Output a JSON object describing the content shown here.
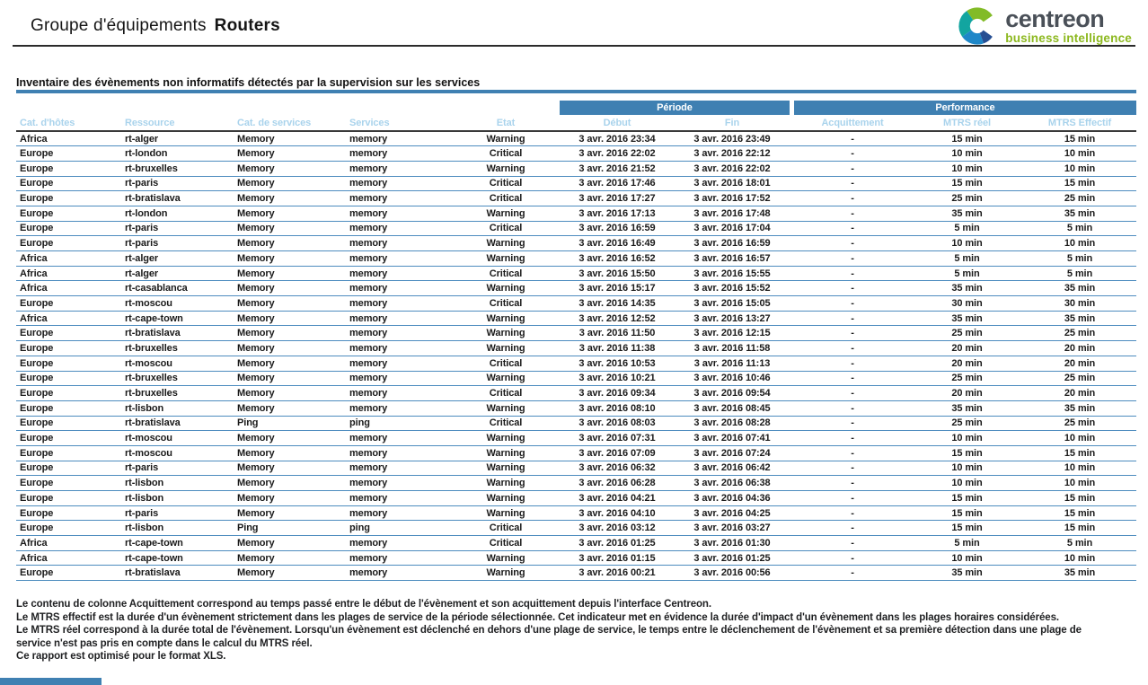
{
  "header": {
    "title_prefix": "Groupe d'équipements",
    "title_emphasis": "Routers"
  },
  "logo": {
    "brand": "centreon",
    "tagline": "business intelligence"
  },
  "section": {
    "title": "Inventaire des évènements non informatifs détectés par la supervision sur les services"
  },
  "table": {
    "group_headers": {
      "periode": "Période",
      "performance": "Performance"
    },
    "columns": [
      "Cat. d'hôtes",
      "Ressource",
      "Cat. de services",
      "Services",
      "Etat",
      "Début",
      "Fin",
      "Acquittement",
      "MTRS réel",
      "MTRS Effectif"
    ],
    "rows": [
      {
        "cat": "Africa",
        "ressource": "rt-alger",
        "cat_service": "Memory",
        "service": "memory",
        "etat": "Warning",
        "debut": "3 avr. 2016 23:34",
        "fin": "3 avr. 2016 23:49",
        "acquittement": "-",
        "mtrs_reel": "15 min",
        "mtrs_effectif": "15 min"
      },
      {
        "cat": "Europe",
        "ressource": "rt-london",
        "cat_service": "Memory",
        "service": "memory",
        "etat": "Critical",
        "debut": "3 avr. 2016 22:02",
        "fin": "3 avr. 2016 22:12",
        "acquittement": "-",
        "mtrs_reel": "10 min",
        "mtrs_effectif": "10 min"
      },
      {
        "cat": "Europe",
        "ressource": "rt-bruxelles",
        "cat_service": "Memory",
        "service": "memory",
        "etat": "Warning",
        "debut": "3 avr. 2016 21:52",
        "fin": "3 avr. 2016 22:02",
        "acquittement": "-",
        "mtrs_reel": "10 min",
        "mtrs_effectif": "10 min"
      },
      {
        "cat": "Europe",
        "ressource": "rt-paris",
        "cat_service": "Memory",
        "service": "memory",
        "etat": "Critical",
        "debut": "3 avr. 2016 17:46",
        "fin": "3 avr. 2016 18:01",
        "acquittement": "-",
        "mtrs_reel": "15 min",
        "mtrs_effectif": "15 min"
      },
      {
        "cat": "Europe",
        "ressource": "rt-bratislava",
        "cat_service": "Memory",
        "service": "memory",
        "etat": "Critical",
        "debut": "3 avr. 2016 17:27",
        "fin": "3 avr. 2016 17:52",
        "acquittement": "-",
        "mtrs_reel": "25 min",
        "mtrs_effectif": "25 min"
      },
      {
        "cat": "Europe",
        "ressource": "rt-london",
        "cat_service": "Memory",
        "service": "memory",
        "etat": "Warning",
        "debut": "3 avr. 2016 17:13",
        "fin": "3 avr. 2016 17:48",
        "acquittement": "-",
        "mtrs_reel": "35 min",
        "mtrs_effectif": "35 min"
      },
      {
        "cat": "Europe",
        "ressource": "rt-paris",
        "cat_service": "Memory",
        "service": "memory",
        "etat": "Critical",
        "debut": "3 avr. 2016 16:59",
        "fin": "3 avr. 2016 17:04",
        "acquittement": "-",
        "mtrs_reel": "5 min",
        "mtrs_effectif": "5 min"
      },
      {
        "cat": "Europe",
        "ressource": "rt-paris",
        "cat_service": "Memory",
        "service": "memory",
        "etat": "Warning",
        "debut": "3 avr. 2016 16:49",
        "fin": "3 avr. 2016 16:59",
        "acquittement": "-",
        "mtrs_reel": "10 min",
        "mtrs_effectif": "10 min"
      },
      {
        "cat": "Africa",
        "ressource": "rt-alger",
        "cat_service": "Memory",
        "service": "memory",
        "etat": "Warning",
        "debut": "3 avr. 2016 16:52",
        "fin": "3 avr. 2016 16:57",
        "acquittement": "-",
        "mtrs_reel": "5 min",
        "mtrs_effectif": "5 min"
      },
      {
        "cat": "Africa",
        "ressource": "rt-alger",
        "cat_service": "Memory",
        "service": "memory",
        "etat": "Critical",
        "debut": "3 avr. 2016 15:50",
        "fin": "3 avr. 2016 15:55",
        "acquittement": "-",
        "mtrs_reel": "5 min",
        "mtrs_effectif": "5 min"
      },
      {
        "cat": "Africa",
        "ressource": "rt-casablanca",
        "cat_service": "Memory",
        "service": "memory",
        "etat": "Warning",
        "debut": "3 avr. 2016 15:17",
        "fin": "3 avr. 2016 15:52",
        "acquittement": "-",
        "mtrs_reel": "35 min",
        "mtrs_effectif": "35 min"
      },
      {
        "cat": "Europe",
        "ressource": "rt-moscou",
        "cat_service": "Memory",
        "service": "memory",
        "etat": "Critical",
        "debut": "3 avr. 2016 14:35",
        "fin": "3 avr. 2016 15:05",
        "acquittement": "-",
        "mtrs_reel": "30 min",
        "mtrs_effectif": "30 min"
      },
      {
        "cat": "Africa",
        "ressource": "rt-cape-town",
        "cat_service": "Memory",
        "service": "memory",
        "etat": "Warning",
        "debut": "3 avr. 2016 12:52",
        "fin": "3 avr. 2016 13:27",
        "acquittement": "-",
        "mtrs_reel": "35 min",
        "mtrs_effectif": "35 min"
      },
      {
        "cat": "Europe",
        "ressource": "rt-bratislava",
        "cat_service": "Memory",
        "service": "memory",
        "etat": "Warning",
        "debut": "3 avr. 2016 11:50",
        "fin": "3 avr. 2016 12:15",
        "acquittement": "-",
        "mtrs_reel": "25 min",
        "mtrs_effectif": "25 min"
      },
      {
        "cat": "Europe",
        "ressource": "rt-bruxelles",
        "cat_service": "Memory",
        "service": "memory",
        "etat": "Warning",
        "debut": "3 avr. 2016 11:38",
        "fin": "3 avr. 2016 11:58",
        "acquittement": "-",
        "mtrs_reel": "20 min",
        "mtrs_effectif": "20 min"
      },
      {
        "cat": "Europe",
        "ressource": "rt-moscou",
        "cat_service": "Memory",
        "service": "memory",
        "etat": "Critical",
        "debut": "3 avr. 2016 10:53",
        "fin": "3 avr. 2016 11:13",
        "acquittement": "-",
        "mtrs_reel": "20 min",
        "mtrs_effectif": "20 min"
      },
      {
        "cat": "Europe",
        "ressource": "rt-bruxelles",
        "cat_service": "Memory",
        "service": "memory",
        "etat": "Warning",
        "debut": "3 avr. 2016 10:21",
        "fin": "3 avr. 2016 10:46",
        "acquittement": "-",
        "mtrs_reel": "25 min",
        "mtrs_effectif": "25 min"
      },
      {
        "cat": "Europe",
        "ressource": "rt-bruxelles",
        "cat_service": "Memory",
        "service": "memory",
        "etat": "Critical",
        "debut": "3 avr. 2016 09:34",
        "fin": "3 avr. 2016 09:54",
        "acquittement": "-",
        "mtrs_reel": "20 min",
        "mtrs_effectif": "20 min"
      },
      {
        "cat": "Europe",
        "ressource": "rt-lisbon",
        "cat_service": "Memory",
        "service": "memory",
        "etat": "Warning",
        "debut": "3 avr. 2016 08:10",
        "fin": "3 avr. 2016 08:45",
        "acquittement": "-",
        "mtrs_reel": "35 min",
        "mtrs_effectif": "35 min"
      },
      {
        "cat": "Europe",
        "ressource": "rt-bratislava",
        "cat_service": "Ping",
        "service": "ping",
        "etat": "Critical",
        "debut": "3 avr. 2016 08:03",
        "fin": "3 avr. 2016 08:28",
        "acquittement": "-",
        "mtrs_reel": "25 min",
        "mtrs_effectif": "25 min"
      },
      {
        "cat": "Europe",
        "ressource": "rt-moscou",
        "cat_service": "Memory",
        "service": "memory",
        "etat": "Warning",
        "debut": "3 avr. 2016 07:31",
        "fin": "3 avr. 2016 07:41",
        "acquittement": "-",
        "mtrs_reel": "10 min",
        "mtrs_effectif": "10 min"
      },
      {
        "cat": "Europe",
        "ressource": "rt-moscou",
        "cat_service": "Memory",
        "service": "memory",
        "etat": "Warning",
        "debut": "3 avr. 2016 07:09",
        "fin": "3 avr. 2016 07:24",
        "acquittement": "-",
        "mtrs_reel": "15 min",
        "mtrs_effectif": "15 min"
      },
      {
        "cat": "Europe",
        "ressource": "rt-paris",
        "cat_service": "Memory",
        "service": "memory",
        "etat": "Warning",
        "debut": "3 avr. 2016 06:32",
        "fin": "3 avr. 2016 06:42",
        "acquittement": "-",
        "mtrs_reel": "10 min",
        "mtrs_effectif": "10 min"
      },
      {
        "cat": "Europe",
        "ressource": "rt-lisbon",
        "cat_service": "Memory",
        "service": "memory",
        "etat": "Warning",
        "debut": "3 avr. 2016 06:28",
        "fin": "3 avr. 2016 06:38",
        "acquittement": "-",
        "mtrs_reel": "10 min",
        "mtrs_effectif": "10 min"
      },
      {
        "cat": "Europe",
        "ressource": "rt-lisbon",
        "cat_service": "Memory",
        "service": "memory",
        "etat": "Warning",
        "debut": "3 avr. 2016 04:21",
        "fin": "3 avr. 2016 04:36",
        "acquittement": "-",
        "mtrs_reel": "15 min",
        "mtrs_effectif": "15 min"
      },
      {
        "cat": "Europe",
        "ressource": "rt-paris",
        "cat_service": "Memory",
        "service": "memory",
        "etat": "Warning",
        "debut": "3 avr. 2016 04:10",
        "fin": "3 avr. 2016 04:25",
        "acquittement": "-",
        "mtrs_reel": "15 min",
        "mtrs_effectif": "15 min"
      },
      {
        "cat": "Europe",
        "ressource": "rt-lisbon",
        "cat_service": "Ping",
        "service": "ping",
        "etat": "Critical",
        "debut": "3 avr. 2016 03:12",
        "fin": "3 avr. 2016 03:27",
        "acquittement": "-",
        "mtrs_reel": "15 min",
        "mtrs_effectif": "15 min"
      },
      {
        "cat": "Africa",
        "ressource": "rt-cape-town",
        "cat_service": "Memory",
        "service": "memory",
        "etat": "Critical",
        "debut": "3 avr. 2016 01:25",
        "fin": "3 avr. 2016 01:30",
        "acquittement": "-",
        "mtrs_reel": "5 min",
        "mtrs_effectif": "5 min"
      },
      {
        "cat": "Africa",
        "ressource": "rt-cape-town",
        "cat_service": "Memory",
        "service": "memory",
        "etat": "Warning",
        "debut": "3 avr. 2016 01:15",
        "fin": "3 avr. 2016 01:25",
        "acquittement": "-",
        "mtrs_reel": "10 min",
        "mtrs_effectif": "10 min"
      },
      {
        "cat": "Europe",
        "ressource": "rt-bratislava",
        "cat_service": "Memory",
        "service": "memory",
        "etat": "Warning",
        "debut": "3 avr. 2016 00:21",
        "fin": "3 avr. 2016 00:56",
        "acquittement": "-",
        "mtrs_reel": "35 min",
        "mtrs_effectif": "35 min"
      }
    ]
  },
  "footer": {
    "lines": [
      "Le contenu de colonne Acquittement correspond au temps passé entre le début de l'évènement et son acquittement depuis l'interface Centreon.",
      "Le MTRS effectif est la durée d'un évènement strictement dans les plages de service de la période sélectionnée. Cet indicateur met en évidence la durée d'impact d'un évènement dans les plages horaires considérées.",
      "Le MTRS réel correspond à la durée total de l'évènement. Lorsqu'un évènement est déclenché en dehors d'une plage de service, le temps entre le déclenchement de l'évènement et sa première détection dans une plage de",
      "service n'est pas pris en compte dans le calcul du MTRS réel.",
      "Ce rapport est optimisé pour le format XLS."
    ]
  },
  "colors": {
    "accent_blue": "#3f80b2",
    "header_text_blue": "#a9d3ec",
    "warning": "#f0a23b",
    "critical": "#ea4b60"
  }
}
